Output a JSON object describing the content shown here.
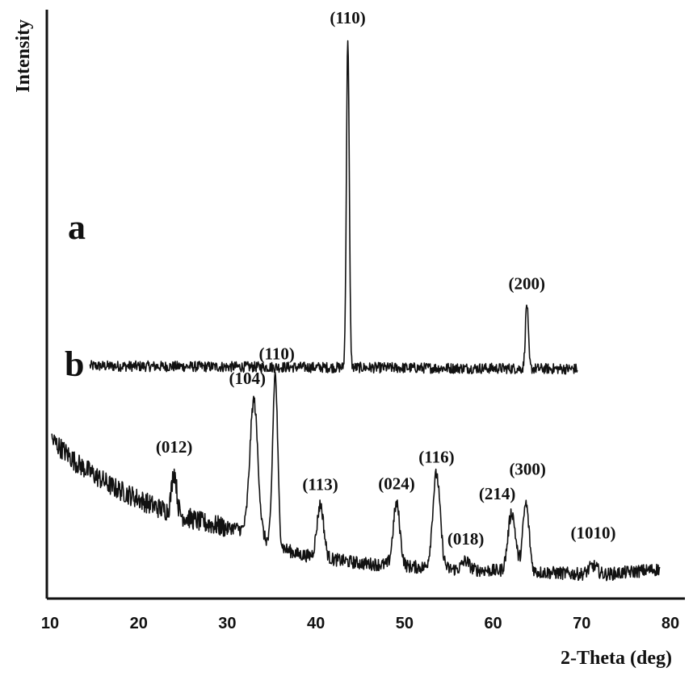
{
  "chart_data": {
    "type": "line",
    "xlabel": "2-Theta (deg)",
    "ylabel": "Intensity",
    "xlim": [
      10,
      80
    ],
    "xticks": [
      10,
      20,
      30,
      40,
      50,
      60,
      70,
      80
    ],
    "grid": false,
    "yticks_shown": false,
    "series": [
      {
        "name": "a",
        "x_range": [
          14.5,
          69.5
        ],
        "baseline": [
          [
            14.5,
            0.395
          ],
          [
            69.5,
            0.39
          ]
        ],
        "noise": 0.018,
        "peaks": [
          {
            "label": "(110)",
            "x": 43.6,
            "height": 0.56,
            "width": 0.16
          },
          {
            "label": "(200)",
            "x": 63.8,
            "height": 0.11,
            "width": 0.16
          }
        ]
      },
      {
        "name": "b",
        "x_range": [
          10.2,
          78.8
        ],
        "baseline": [
          [
            10.2,
            0.27
          ],
          [
            13,
            0.23
          ],
          [
            17,
            0.19
          ],
          [
            22,
            0.155
          ],
          [
            27,
            0.13
          ],
          [
            30,
            0.12
          ],
          [
            31,
            0.12
          ],
          [
            34,
            0.1
          ],
          [
            38,
            0.075
          ],
          [
            45,
            0.06
          ],
          [
            55,
            0.05
          ],
          [
            65,
            0.045
          ],
          [
            72,
            0.04
          ],
          [
            78.8,
            0.05
          ]
        ],
        "noise": 0.022,
        "peaks": [
          {
            "label": "(012)",
            "x": 24.0,
            "height": 0.07,
            "width": 0.28
          },
          {
            "label": "(104)",
            "x": 33.0,
            "height": 0.23,
            "width": 0.45
          },
          {
            "label": "(110)",
            "x": 35.4,
            "height": 0.29,
            "width": 0.28
          },
          {
            "label": "(113)",
            "x": 40.5,
            "height": 0.09,
            "width": 0.38
          },
          {
            "label": "(024)",
            "x": 49.1,
            "height": 0.105,
            "width": 0.38
          },
          {
            "label": "(116)",
            "x": 53.6,
            "height": 0.16,
            "width": 0.42
          },
          {
            "label": "(018)",
            "x": 56.9,
            "height": 0.015,
            "width": 0.4
          },
          {
            "label": "(214)",
            "x": 62.1,
            "height": 0.1,
            "width": 0.42
          },
          {
            "label": "(300)",
            "x": 63.7,
            "height": 0.115,
            "width": 0.35
          },
          {
            "label": "(1010)",
            "x": 71.3,
            "height": 0.015,
            "width": 0.5
          }
        ]
      }
    ]
  }
}
